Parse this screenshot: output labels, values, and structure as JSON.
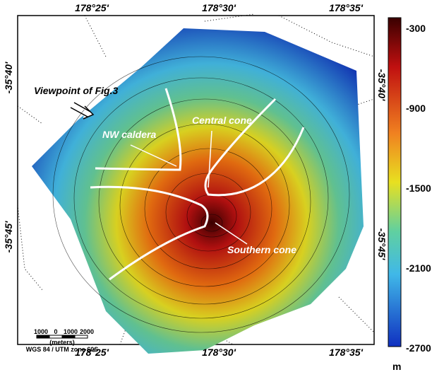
{
  "map": {
    "top_labels": [
      "178°25'",
      "178°30'",
      "178°35'"
    ],
    "bottom_labels": [
      "178°25'",
      "178°30'",
      "178°35'"
    ],
    "left_labels": [
      "-35°40'",
      "-35°45'"
    ],
    "right_labels": [
      "-35°40'",
      "-35°45'"
    ],
    "annotations": [
      "Viewpoint of Fig.3",
      "NW caldera",
      "Central cone",
      "Southern cone"
    ],
    "scale_bar": {
      "ticks": [
        "1000",
        "0",
        "1000",
        "2000"
      ],
      "unit": "(meters)",
      "projection": "WGS 84 / UTM zone 60S"
    }
  },
  "colorbar": {
    "ticks": [
      -300,
      -900,
      -1500,
      -2100,
      -2700
    ],
    "unit": "m"
  }
}
